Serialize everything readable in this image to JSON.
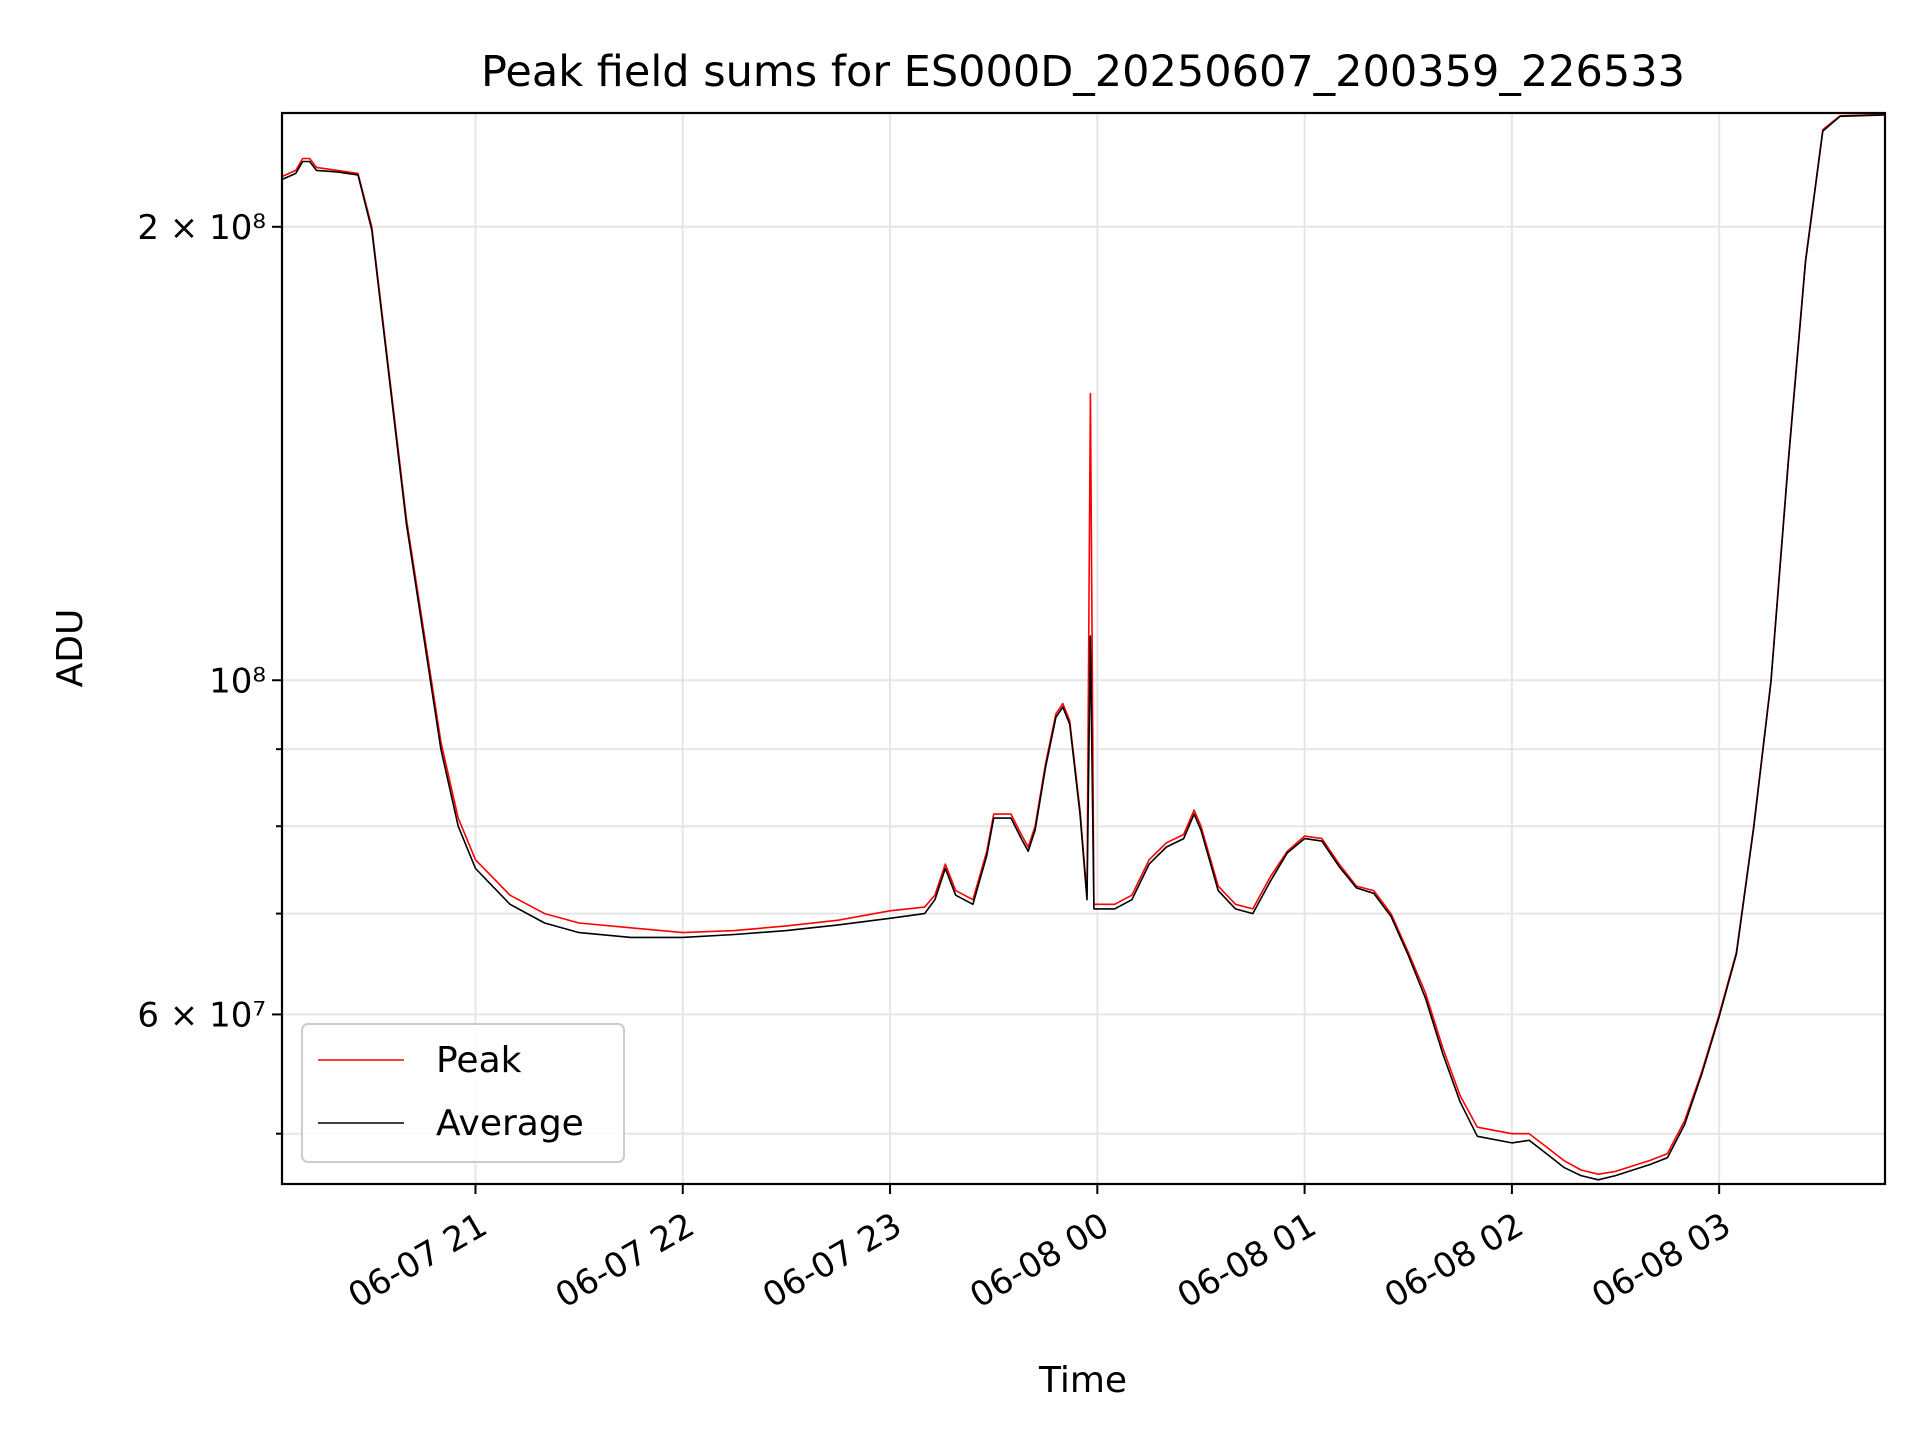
{
  "chart_data": {
    "type": "line",
    "title": "Peak field sums for ES000D_20250607_200359_226533",
    "xlabel": "Time",
    "ylabel": "ADU",
    "y_scale": "log",
    "xlim": [
      "2025-06-07 20:04",
      "2025-06-08 03:48"
    ],
    "ylim": [
      46300000,
      238000000
    ],
    "x_ticks": [
      {
        "value": "2025-06-07 21:00",
        "label": "06-07 21"
      },
      {
        "value": "2025-06-07 22:00",
        "label": "06-07 22"
      },
      {
        "value": "2025-06-07 23:00",
        "label": "06-07 23"
      },
      {
        "value": "2025-06-08 00:00",
        "label": "06-08 00"
      },
      {
        "value": "2025-06-08 01:00",
        "label": "06-08 01"
      },
      {
        "value": "2025-06-08 02:00",
        "label": "06-08 02"
      },
      {
        "value": "2025-06-08 03:00",
        "label": "06-08 03"
      }
    ],
    "y_ticks_major": [
      {
        "value": 60000000,
        "label": "6 × 10⁷"
      },
      {
        "value": 100000000,
        "label": "10⁸"
      },
      {
        "value": 200000000,
        "label": "2 × 10⁸"
      }
    ],
    "y_ticks_minor": [
      50000000,
      70000000,
      80000000,
      90000000
    ],
    "grid": true,
    "legend_position": "lower-left",
    "series": [
      {
        "name": "Peak",
        "color": "#ff0000",
        "points": [
          [
            "2025-06-07 20:04",
            216000000
          ],
          [
            "2025-06-07 20:08",
            218000000
          ],
          [
            "2025-06-07 20:10",
            222000000
          ],
          [
            "2025-06-07 20:12",
            222000000
          ],
          [
            "2025-06-07 20:14",
            219000000
          ],
          [
            "2025-06-07 20:20",
            218000000
          ],
          [
            "2025-06-07 20:26",
            217000000
          ],
          [
            "2025-06-07 20:30",
            200000000
          ],
          [
            "2025-06-07 20:35",
            160000000
          ],
          [
            "2025-06-07 20:40",
            128000000
          ],
          [
            "2025-06-07 20:45",
            108000000
          ],
          [
            "2025-06-07 20:50",
            91000000
          ],
          [
            "2025-06-07 20:55",
            81000000
          ],
          [
            "2025-06-07 21:00",
            76000000
          ],
          [
            "2025-06-07 21:10",
            72000000
          ],
          [
            "2025-06-07 21:20",
            70000000
          ],
          [
            "2025-06-07 21:30",
            69000000
          ],
          [
            "2025-06-07 21:45",
            68500000
          ],
          [
            "2025-06-07 22:00",
            68000000
          ],
          [
            "2025-06-07 22:15",
            68200000
          ],
          [
            "2025-06-07 22:30",
            68700000
          ],
          [
            "2025-06-07 22:45",
            69300000
          ],
          [
            "2025-06-07 23:00",
            70300000
          ],
          [
            "2025-06-07 23:10",
            70700000
          ],
          [
            "2025-06-07 23:13",
            72000000
          ],
          [
            "2025-06-07 23:16",
            75500000
          ],
          [
            "2025-06-07 23:19",
            72500000
          ],
          [
            "2025-06-07 23:24",
            71500000
          ],
          [
            "2025-06-07 23:28",
            77000000
          ],
          [
            "2025-06-07 23:30",
            81500000
          ],
          [
            "2025-06-07 23:35",
            81500000
          ],
          [
            "2025-06-07 23:38",
            79000000
          ],
          [
            "2025-06-07 23:40",
            77500000
          ],
          [
            "2025-06-07 23:42",
            80000000
          ],
          [
            "2025-06-07 23:45",
            88000000
          ],
          [
            "2025-06-07 23:48",
            95000000
          ],
          [
            "2025-06-07 23:50",
            96500000
          ],
          [
            "2025-06-07 23:52",
            94000000
          ],
          [
            "2025-06-07 23:55",
            82000000
          ],
          [
            "2025-06-07 23:57",
            72000000
          ],
          [
            "2025-06-07 23:58",
            155000000
          ],
          [
            "2025-06-07 23:59",
            71000000
          ],
          [
            "2025-06-08 00:05",
            71000000
          ],
          [
            "2025-06-08 00:10",
            72000000
          ],
          [
            "2025-06-08 00:15",
            76000000
          ],
          [
            "2025-06-08 00:20",
            78000000
          ],
          [
            "2025-06-08 00:25",
            79000000
          ],
          [
            "2025-06-08 00:28",
            82000000
          ],
          [
            "2025-06-08 00:30",
            80000000
          ],
          [
            "2025-06-08 00:35",
            73000000
          ],
          [
            "2025-06-08 00:40",
            71000000
          ],
          [
            "2025-06-08 00:45",
            70500000
          ],
          [
            "2025-06-08 00:50",
            74000000
          ],
          [
            "2025-06-08 00:55",
            77000000
          ],
          [
            "2025-06-08 01:00",
            78800000
          ],
          [
            "2025-06-08 01:05",
            78500000
          ],
          [
            "2025-06-08 01:10",
            75500000
          ],
          [
            "2025-06-08 01:15",
            73000000
          ],
          [
            "2025-06-08 01:20",
            72500000
          ],
          [
            "2025-06-08 01:25",
            70000000
          ],
          [
            "2025-06-08 01:30",
            66000000
          ],
          [
            "2025-06-08 01:35",
            62000000
          ],
          [
            "2025-06-08 01:40",
            57000000
          ],
          [
            "2025-06-08 01:45",
            53000000
          ],
          [
            "2025-06-08 01:50",
            50500000
          ],
          [
            "2025-06-08 02:00",
            50000000
          ],
          [
            "2025-06-08 02:05",
            50000000
          ],
          [
            "2025-06-08 02:10",
            49000000
          ],
          [
            "2025-06-08 02:15",
            48000000
          ],
          [
            "2025-06-08 02:20",
            47300000
          ],
          [
            "2025-06-08 02:25",
            47000000
          ],
          [
            "2025-06-08 02:30",
            47200000
          ],
          [
            "2025-06-08 02:40",
            48000000
          ],
          [
            "2025-06-08 02:45",
            48500000
          ],
          [
            "2025-06-08 02:50",
            51000000
          ],
          [
            "2025-06-08 02:55",
            55000000
          ],
          [
            "2025-06-08 03:00",
            60000000
          ],
          [
            "2025-06-08 03:05",
            66000000
          ],
          [
            "2025-06-08 03:10",
            80000000
          ],
          [
            "2025-06-08 03:15",
            100000000
          ],
          [
            "2025-06-08 03:20",
            140000000
          ],
          [
            "2025-06-08 03:25",
            190000000
          ],
          [
            "2025-06-08 03:30",
            232000000
          ],
          [
            "2025-06-08 03:35",
            237000000
          ],
          [
            "2025-06-08 03:48",
            237500000
          ]
        ]
      },
      {
        "name": "Average",
        "color": "#000000",
        "points": [
          [
            "2025-06-07 20:04",
            215000000
          ],
          [
            "2025-06-07 20:08",
            217000000
          ],
          [
            "2025-06-07 20:10",
            221000000
          ],
          [
            "2025-06-07 20:12",
            221000000
          ],
          [
            "2025-06-07 20:14",
            218000000
          ],
          [
            "2025-06-07 20:20",
            217500000
          ],
          [
            "2025-06-07 20:26",
            216500000
          ],
          [
            "2025-06-07 20:30",
            199000000
          ],
          [
            "2025-06-07 20:35",
            159000000
          ],
          [
            "2025-06-07 20:40",
            127000000
          ],
          [
            "2025-06-07 20:45",
            107000000
          ],
          [
            "2025-06-07 20:50",
            90000000
          ],
          [
            "2025-06-07 20:55",
            80000000
          ],
          [
            "2025-06-07 21:00",
            75000000
          ],
          [
            "2025-06-07 21:10",
            71000000
          ],
          [
            "2025-06-07 21:20",
            69000000
          ],
          [
            "2025-06-07 21:30",
            68000000
          ],
          [
            "2025-06-07 21:45",
            67500000
          ],
          [
            "2025-06-07 22:00",
            67500000
          ],
          [
            "2025-06-07 22:15",
            67800000
          ],
          [
            "2025-06-07 22:30",
            68200000
          ],
          [
            "2025-06-07 22:45",
            68800000
          ],
          [
            "2025-06-07 23:00",
            69500000
          ],
          [
            "2025-06-07 23:10",
            70000000
          ],
          [
            "2025-06-07 23:13",
            71500000
          ],
          [
            "2025-06-07 23:16",
            75000000
          ],
          [
            "2025-06-07 23:19",
            72000000
          ],
          [
            "2025-06-07 23:24",
            71000000
          ],
          [
            "2025-06-07 23:28",
            76500000
          ],
          [
            "2025-06-07 23:30",
            81000000
          ],
          [
            "2025-06-07 23:35",
            81000000
          ],
          [
            "2025-06-07 23:38",
            78500000
          ],
          [
            "2025-06-07 23:40",
            77000000
          ],
          [
            "2025-06-07 23:42",
            79500000
          ],
          [
            "2025-06-07 23:45",
            87500000
          ],
          [
            "2025-06-07 23:48",
            94500000
          ],
          [
            "2025-06-07 23:50",
            96000000
          ],
          [
            "2025-06-07 23:52",
            93500000
          ],
          [
            "2025-06-07 23:55",
            81500000
          ],
          [
            "2025-06-07 23:57",
            71500000
          ],
          [
            "2025-06-07 23:58",
            107000000
          ],
          [
            "2025-06-07 23:59",
            70500000
          ],
          [
            "2025-06-08 00:05",
            70500000
          ],
          [
            "2025-06-08 00:10",
            71500000
          ],
          [
            "2025-06-08 00:15",
            75500000
          ],
          [
            "2025-06-08 00:20",
            77500000
          ],
          [
            "2025-06-08 00:25",
            78500000
          ],
          [
            "2025-06-08 00:28",
            81500000
          ],
          [
            "2025-06-08 00:30",
            79500000
          ],
          [
            "2025-06-08 00:35",
            72500000
          ],
          [
            "2025-06-08 00:40",
            70500000
          ],
          [
            "2025-06-08 00:45",
            70000000
          ],
          [
            "2025-06-08 00:50",
            73500000
          ],
          [
            "2025-06-08 00:55",
            76800000
          ],
          [
            "2025-06-08 01:00",
            78500000
          ],
          [
            "2025-06-08 01:05",
            78200000
          ],
          [
            "2025-06-08 01:10",
            75200000
          ],
          [
            "2025-06-08 01:15",
            72800000
          ],
          [
            "2025-06-08 01:20",
            72200000
          ],
          [
            "2025-06-08 01:25",
            69700000
          ],
          [
            "2025-06-08 01:30",
            65700000
          ],
          [
            "2025-06-08 01:35",
            61500000
          ],
          [
            "2025-06-08 01:40",
            56500000
          ],
          [
            "2025-06-08 01:45",
            52500000
          ],
          [
            "2025-06-08 01:50",
            49800000
          ],
          [
            "2025-06-08 02:00",
            49300000
          ],
          [
            "2025-06-08 02:05",
            49500000
          ],
          [
            "2025-06-08 02:10",
            48500000
          ],
          [
            "2025-06-08 02:15",
            47500000
          ],
          [
            "2025-06-08 02:20",
            46900000
          ],
          [
            "2025-06-08 02:25",
            46600000
          ],
          [
            "2025-06-08 02:30",
            46900000
          ],
          [
            "2025-06-08 02:40",
            47700000
          ],
          [
            "2025-06-08 02:45",
            48200000
          ],
          [
            "2025-06-08 02:50",
            50700000
          ],
          [
            "2025-06-08 02:55",
            54800000
          ],
          [
            "2025-06-08 03:00",
            59800000
          ],
          [
            "2025-06-08 03:05",
            65800000
          ],
          [
            "2025-06-08 03:10",
            79800000
          ],
          [
            "2025-06-08 03:15",
            99800000
          ],
          [
            "2025-06-08 03:20",
            139500000
          ],
          [
            "2025-06-08 03:25",
            189500000
          ],
          [
            "2025-06-08 03:30",
            231500000
          ],
          [
            "2025-06-08 03:35",
            236800000
          ],
          [
            "2025-06-08 03:48",
            237300000
          ]
        ]
      }
    ]
  }
}
